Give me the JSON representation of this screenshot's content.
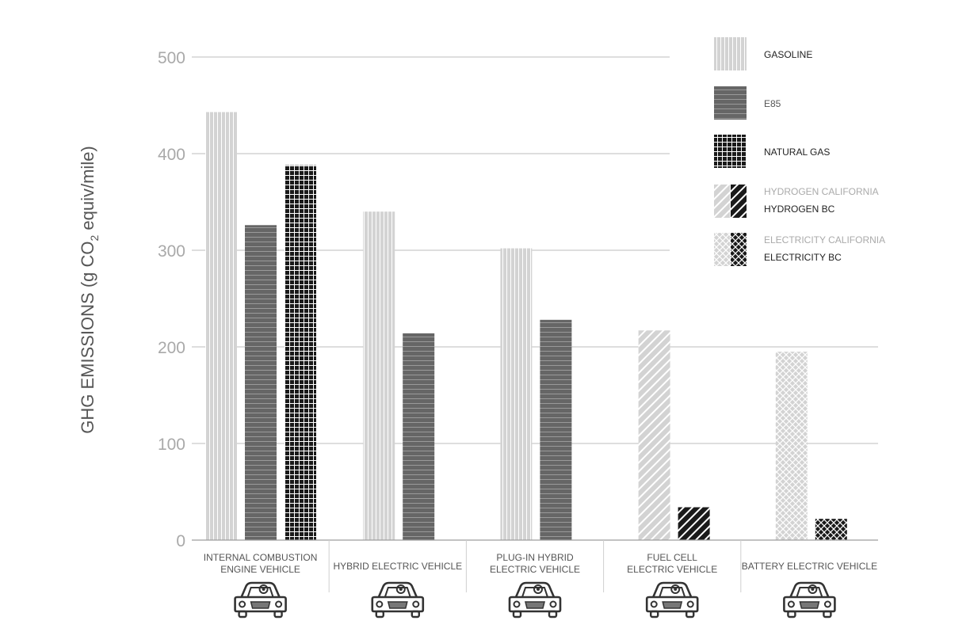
{
  "chart_data": {
    "type": "bar",
    "title": "",
    "ylabel": {
      "prefix": "GHG EMISSIONS (g CO",
      "subscript": "2",
      "suffix": " equiv/mile)"
    },
    "ylim": [
      0,
      500
    ],
    "yticks": [
      0,
      100,
      200,
      300,
      400,
      500
    ],
    "grid": true,
    "legend_position": "top-right",
    "categories": [
      {
        "line1": "INTERNAL COMBUSTION",
        "line2": "ENGINE VEHICLE",
        "icon": "car-icon"
      },
      {
        "line1": "HYBRID ELECTRIC VEHICLE",
        "line2": "",
        "icon": "car-icon"
      },
      {
        "line1": "PLUG-IN HYBRID",
        "line2": "ELECTRIC VEHICLE",
        "icon": "car-icon"
      },
      {
        "line1": "FUEL CELL",
        "line2": "ELECTRIC VEHICLE",
        "icon": "car-icon"
      },
      {
        "line1": "BATTERY ELECTRIC VEHICLE",
        "line2": "",
        "icon": "car-icon"
      }
    ],
    "bars": [
      {
        "category": 0,
        "series": "gasoline",
        "value": 443
      },
      {
        "category": 0,
        "series": "e85",
        "value": 326
      },
      {
        "category": 0,
        "series": "natural_gas",
        "value": 388
      },
      {
        "category": 1,
        "series": "gasoline",
        "value": 340
      },
      {
        "category": 1,
        "series": "e85",
        "value": 214
      },
      {
        "category": 2,
        "series": "gasoline",
        "value": 302
      },
      {
        "category": 2,
        "series": "e85",
        "value": 228
      },
      {
        "category": 3,
        "series": "hydrogen_california",
        "value": 217
      },
      {
        "category": 3,
        "series": "hydrogen_bc",
        "value": 34
      },
      {
        "category": 4,
        "series": "electricity_california",
        "value": 195
      },
      {
        "category": 4,
        "series": "electricity_bc",
        "value": 22
      }
    ],
    "legend": [
      {
        "key": "gasoline",
        "labels": [
          {
            "text": "GASOLINE",
            "color": "#222222"
          }
        ],
        "swatch": [
          "gasoline"
        ]
      },
      {
        "key": "e85",
        "labels": [
          {
            "text": "E85",
            "color": "#555555"
          }
        ],
        "swatch": [
          "e85"
        ]
      },
      {
        "key": "natural_gas",
        "labels": [
          {
            "text": "NATURAL GAS",
            "color": "#222222"
          }
        ],
        "swatch": [
          "natural_gas"
        ]
      },
      {
        "key": "hydrogen",
        "labels": [
          {
            "text": "HYDROGEN CALIFORNIA",
            "color": "#aaaaaa"
          },
          {
            "text": "HYDROGEN BC",
            "color": "#222222"
          }
        ],
        "swatch": [
          "hydrogen_california",
          "hydrogen_bc"
        ]
      },
      {
        "key": "electricity",
        "labels": [
          {
            "text": "ELECTRICITY CALIFORNIA",
            "color": "#aaaaaa"
          },
          {
            "text": "ELECTRICITY BC",
            "color": "#222222"
          }
        ],
        "swatch": [
          "electricity_california",
          "electricity_bc"
        ]
      }
    ],
    "colors": {
      "gasoline": "#cfcfcf",
      "e85": "#666666",
      "natural_gas": "#1a1a1a",
      "hydrogen_california": "#cfcfcf",
      "hydrogen_bc": "#1a1a1a",
      "electricity_california": "#cfcfcf",
      "electricity_bc": "#1a1a1a",
      "grid": "#bdbdbd",
      "tick_label": "#a9a9a9",
      "axis_label": "#555555",
      "category_label": "#555555"
    }
  }
}
